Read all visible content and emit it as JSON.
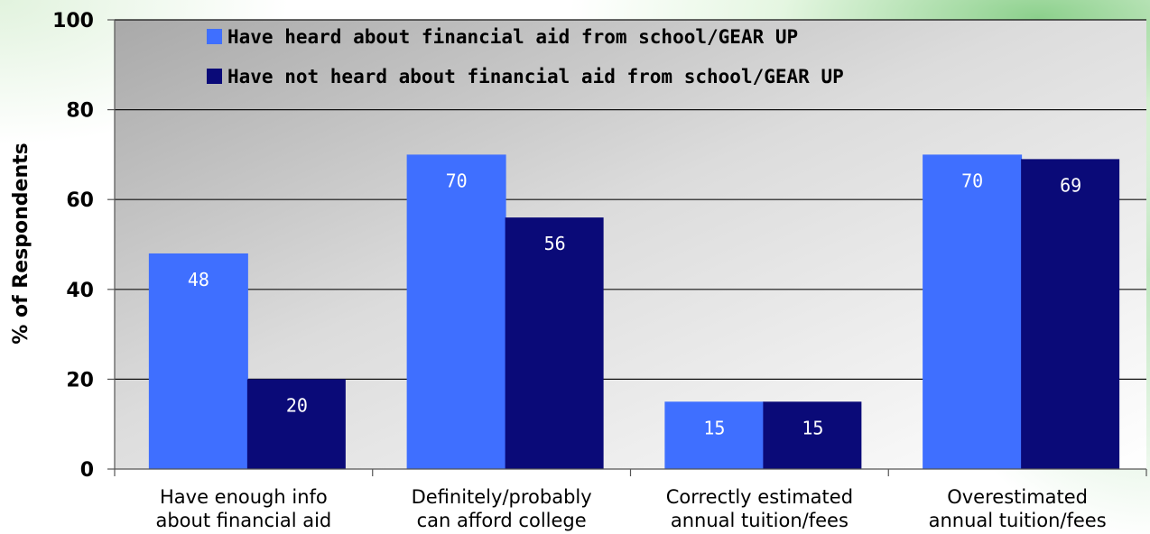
{
  "chart_data": {
    "type": "bar",
    "categories": [
      [
        "Have enough info",
        "about financial aid"
      ],
      [
        "Definitely/probably",
        "can afford college"
      ],
      [
        "Correctly estimated",
        "annual tuition/fees"
      ],
      [
        "Overestimated",
        "annual tuition/fees"
      ]
    ],
    "series": [
      {
        "name": "Have heard about financial aid from school/GEAR UP",
        "color": "#3f6fff",
        "values": [
          48,
          70,
          15,
          70
        ],
        "labels": [
          "48",
          "70",
          "15",
          "70"
        ]
      },
      {
        "name": "Have not heard about financial aid from school/GEAR UP",
        "color": "#0a0a78",
        "values": [
          20,
          56,
          15,
          69
        ],
        "labels": [
          "20",
          "56",
          "15",
          "69"
        ]
      }
    ],
    "title": "",
    "xlabel": "",
    "ylabel": "% of Respondents",
    "ylim": [
      0,
      100
    ],
    "yticks": [
      "0",
      "20",
      "40",
      "60",
      "80",
      "100"
    ],
    "grid": true,
    "legend_position": "top-center"
  }
}
